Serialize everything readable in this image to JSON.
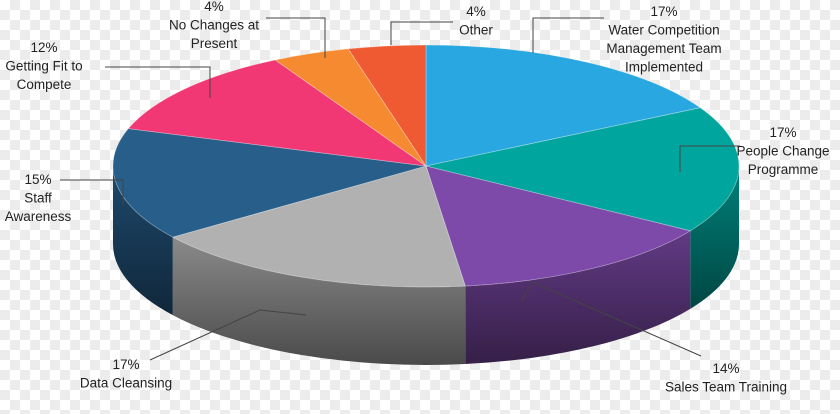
{
  "chart_data": {
    "type": "pie",
    "title": "",
    "three_d": true,
    "slices": [
      {
        "label": "Water Competition Management Team Implemented",
        "value": 17,
        "pct": "17%",
        "color": "#29a7e1"
      },
      {
        "label": "People Change Programme",
        "value": 17,
        "pct": "17%",
        "color": "#00a69d"
      },
      {
        "label": "Sales Team Training",
        "value": 14,
        "pct": "14%",
        "color": "#7e4aaa"
      },
      {
        "label": "Data Cleansing",
        "value": 17,
        "pct": "17%",
        "color": "#b1b1b1"
      },
      {
        "label": "Staff Awareness",
        "value": 15,
        "pct": "15%",
        "color": "#275e8a"
      },
      {
        "label": "Getting Fit to Compete",
        "value": 12,
        "pct": "12%",
        "color": "#f23874"
      },
      {
        "label": "No Changes at Present",
        "value": 4,
        "pct": "4%",
        "color": "#f58a30"
      },
      {
        "label": "Other",
        "value": 4,
        "pct": "4%",
        "color": "#f05a32"
      }
    ],
    "label_lines": [
      [
        "Water Competition",
        "Management Team",
        "Implemented"
      ],
      [
        "People Change",
        "Programme"
      ],
      [
        "Sales Team Training"
      ],
      [
        "Data Cleansing"
      ],
      [
        "Staff",
        "Awareness"
      ],
      [
        "Getting Fit to",
        "Compete"
      ],
      [
        "No Changes at",
        "Present"
      ],
      [
        "Other"
      ]
    ],
    "legend": "none"
  }
}
